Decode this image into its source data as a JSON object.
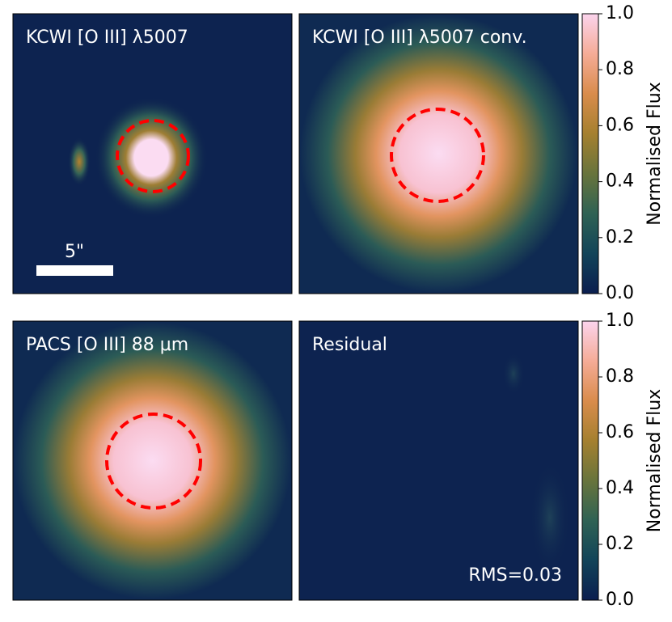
{
  "chart_data": [
    {
      "type": "image",
      "title": "KCWI [O III] λ5007",
      "annotations": [
        "5\""
      ]
    },
    {
      "type": "image",
      "title": "KCWI [O III] λ5007 conv."
    },
    {
      "type": "image",
      "title": "PACS [O III] 88 μm"
    },
    {
      "type": "image",
      "title": "Residual",
      "annotations": [
        "RMS=0.03"
      ]
    },
    {
      "type": "colorbar",
      "ylabel": "Normalised Flux",
      "ylim": [
        0,
        1
      ],
      "yticks": [
        {
          "value": 0,
          "label": "0.0"
        },
        0.2,
        0.4,
        0.6,
        0.8,
        {
          "value": 1,
          "label": "1.0"
        }
      ],
      "colormap": [
        "#0b1e4f",
        "#124459",
        "#2f6254",
        "#68743c",
        "#a5802f",
        "#d98c4c",
        "#f5ac97",
        "#fbd4ed"
      ]
    },
    {
      "type": "colorbar",
      "ylabel": "Normalised Flux",
      "ylim": [
        0,
        1
      ],
      "yticks": [
        {
          "value": 0,
          "label": "0.0"
        },
        0.2,
        0.4,
        0.6,
        0.8,
        {
          "value": 1,
          "label": "1.0"
        }
      ],
      "colormap": [
        "#0b1e4f",
        "#124459",
        "#2f6254",
        "#68743c",
        "#a5802f",
        "#d98c4c",
        "#f5ac97",
        "#fbd4ed"
      ]
    }
  ]
}
